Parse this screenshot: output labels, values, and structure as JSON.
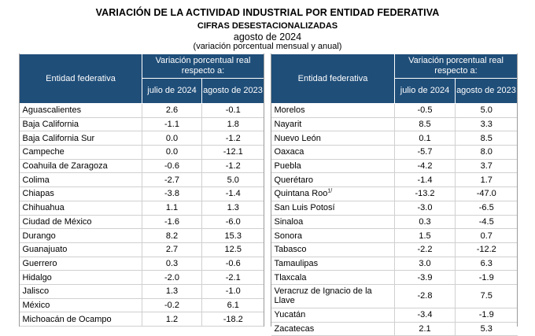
{
  "header": {
    "title": "VARIACIÓN DE LA ACTIVIDAD INDUSTRIAL POR ENTIDAD FEDERATIVA",
    "subtitle": "CIFRAS DESESTACIONALIZADAS",
    "period": "agosto de 2024",
    "note": "(variación porcentual mensual y anual)"
  },
  "table_headers": {
    "entity": "Entidad federativa",
    "variation": "Variación porcentual real respecto a:",
    "col1": "julio de 2024",
    "col2": "agosto de 2023"
  },
  "left_rows": [
    {
      "entity": "Aguascalientes",
      "v1": "2.6",
      "v2": "-0.1"
    },
    {
      "entity": "Baja California",
      "v1": "-1.1",
      "v2": "1.8"
    },
    {
      "entity": "Baja California Sur",
      "v1": "0.0",
      "v2": "-1.2"
    },
    {
      "entity": "Campeche",
      "v1": "0.0",
      "v2": "-12.1"
    },
    {
      "entity": "Coahuila de Zaragoza",
      "v1": "-0.6",
      "v2": "-1.2"
    },
    {
      "entity": "Colima",
      "v1": "-2.7",
      "v2": "5.0"
    },
    {
      "entity": "Chiapas",
      "v1": "-3.8",
      "v2": "-1.4"
    },
    {
      "entity": "Chihuahua",
      "v1": "1.1",
      "v2": "1.3"
    },
    {
      "entity": "Ciudad de México",
      "v1": "-1.6",
      "v2": "-6.0"
    },
    {
      "entity": "Durango",
      "v1": "8.2",
      "v2": "15.3"
    },
    {
      "entity": "Guanajuato",
      "v1": "2.7",
      "v2": "12.5"
    },
    {
      "entity": "Guerrero",
      "v1": "0.3",
      "v2": "-0.6"
    },
    {
      "entity": "Hidalgo",
      "v1": "-2.0",
      "v2": "-2.1"
    },
    {
      "entity": "Jalisco",
      "v1": "1.3",
      "v2": "-1.0"
    },
    {
      "entity": "México",
      "v1": "-0.2",
      "v2": "6.1"
    },
    {
      "entity": "Michoacán de Ocampo",
      "v1": "1.2",
      "v2": "-18.2"
    }
  ],
  "right_rows": [
    {
      "entity": "Morelos",
      "v1": "-0.5",
      "v2": "5.0"
    },
    {
      "entity": "Nayarit",
      "v1": "8.5",
      "v2": "3.3"
    },
    {
      "entity": "Nuevo León",
      "v1": "0.1",
      "v2": "8.5"
    },
    {
      "entity": "Oaxaca",
      "v1": "-5.7",
      "v2": "8.0"
    },
    {
      "entity": "Puebla",
      "v1": "-4.2",
      "v2": "3.7"
    },
    {
      "entity": "Querétaro",
      "v1": "-1.4",
      "v2": "1.7"
    },
    {
      "entity": "Quintana Roo",
      "sup": "1/",
      "v1": "-13.2",
      "v2": "-47.0"
    },
    {
      "entity": "San Luis Potosí",
      "v1": "-3.0",
      "v2": "-6.5"
    },
    {
      "entity": "Sinaloa",
      "v1": "0.3",
      "v2": "-4.5"
    },
    {
      "entity": "Sonora",
      "v1": "1.5",
      "v2": "0.7"
    },
    {
      "entity": "Tabasco",
      "v1": "-2.2",
      "v2": "-12.2"
    },
    {
      "entity": "Tamaulipas",
      "v1": "3.0",
      "v2": "6.3"
    },
    {
      "entity": "Tlaxcala",
      "v1": "-3.9",
      "v2": "-1.9"
    },
    {
      "entity": "Veracruz de Ignacio de la Llave",
      "v1": "-2.8",
      "v2": "7.5"
    },
    {
      "entity": "Yucatán",
      "v1": "-3.4",
      "v2": "-1.9"
    },
    {
      "entity": "Zacatecas",
      "v1": "2.1",
      "v2": "5.3"
    }
  ],
  "colors": {
    "header_bg": "#1f4e79",
    "header_text": "#ffffff"
  }
}
